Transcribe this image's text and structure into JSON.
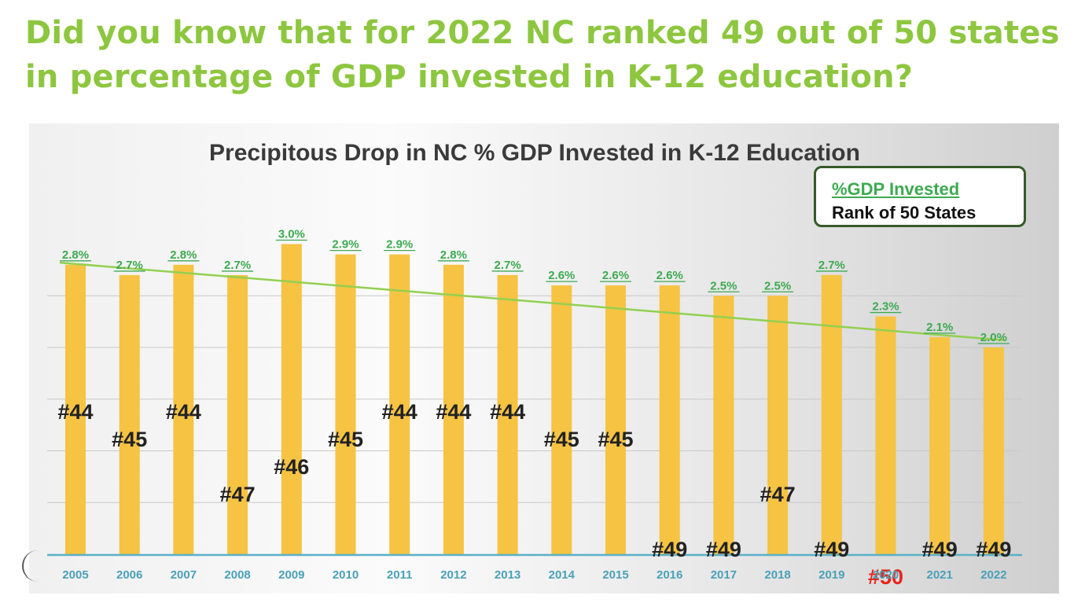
{
  "headline": "Did you know that for 2022 NC ranked 49 out of 50 states in percentage of GDP invested in K-12 education?",
  "legend": {
    "gdp_label": "%GDP Invested",
    "rank_label": "Rank of 50 States"
  },
  "colors": {
    "headline": "#8dc63f",
    "bar": "#f6c343",
    "trend": "#92d050",
    "pct_label": "#3daa50",
    "rank_label": "#222222",
    "rank_highlight": "#e8261c",
    "axis": "#5bb0c8",
    "year_label": "#4aa0b8"
  },
  "chart_data": {
    "type": "bar",
    "title": "Precipitous Drop in NC % GDP Invested in K-12 Education",
    "categories": [
      "2005",
      "2006",
      "2007",
      "2008",
      "2009",
      "2010",
      "2011",
      "2012",
      "2013",
      "2014",
      "2015",
      "2016",
      "2017",
      "2018",
      "2019",
      "2020",
      "2021",
      "2022"
    ],
    "series": [
      {
        "name": "%GDP Invested",
        "values": [
          2.8,
          2.7,
          2.8,
          2.7,
          3.0,
          2.9,
          2.9,
          2.8,
          2.7,
          2.6,
          2.6,
          2.6,
          2.5,
          2.5,
          2.7,
          2.3,
          2.1,
          2.0
        ],
        "labels": [
          "2.8%",
          "2.7%",
          "2.8%",
          "2.7%",
          "3.0%",
          "2.9%",
          "2.9%",
          "2.8%",
          "2.7%",
          "2.6%",
          "2.6%",
          "2.6%",
          "2.5%",
          "2.5%",
          "2.7%",
          "2.3%",
          "2.1%",
          "2.0%"
        ]
      },
      {
        "name": "Rank of 50 States",
        "values": [
          44,
          45,
          44,
          47,
          46,
          45,
          44,
          44,
          44,
          45,
          45,
          49,
          49,
          47,
          49,
          50,
          49,
          49
        ],
        "labels": [
          "#44",
          "#45",
          "#44",
          "#47",
          "#46",
          "#45",
          "#44",
          "#44",
          "#44",
          "#45",
          "#45",
          "#49",
          "#49",
          "#47",
          "#49",
          "#50",
          "#49",
          "#49"
        ]
      }
    ],
    "trendline": {
      "from": 2.82,
      "to": 2.07
    },
    "ylim": [
      0,
      3.0
    ],
    "grid": true,
    "legend_position": "top-right",
    "highlight_category": "2020"
  }
}
